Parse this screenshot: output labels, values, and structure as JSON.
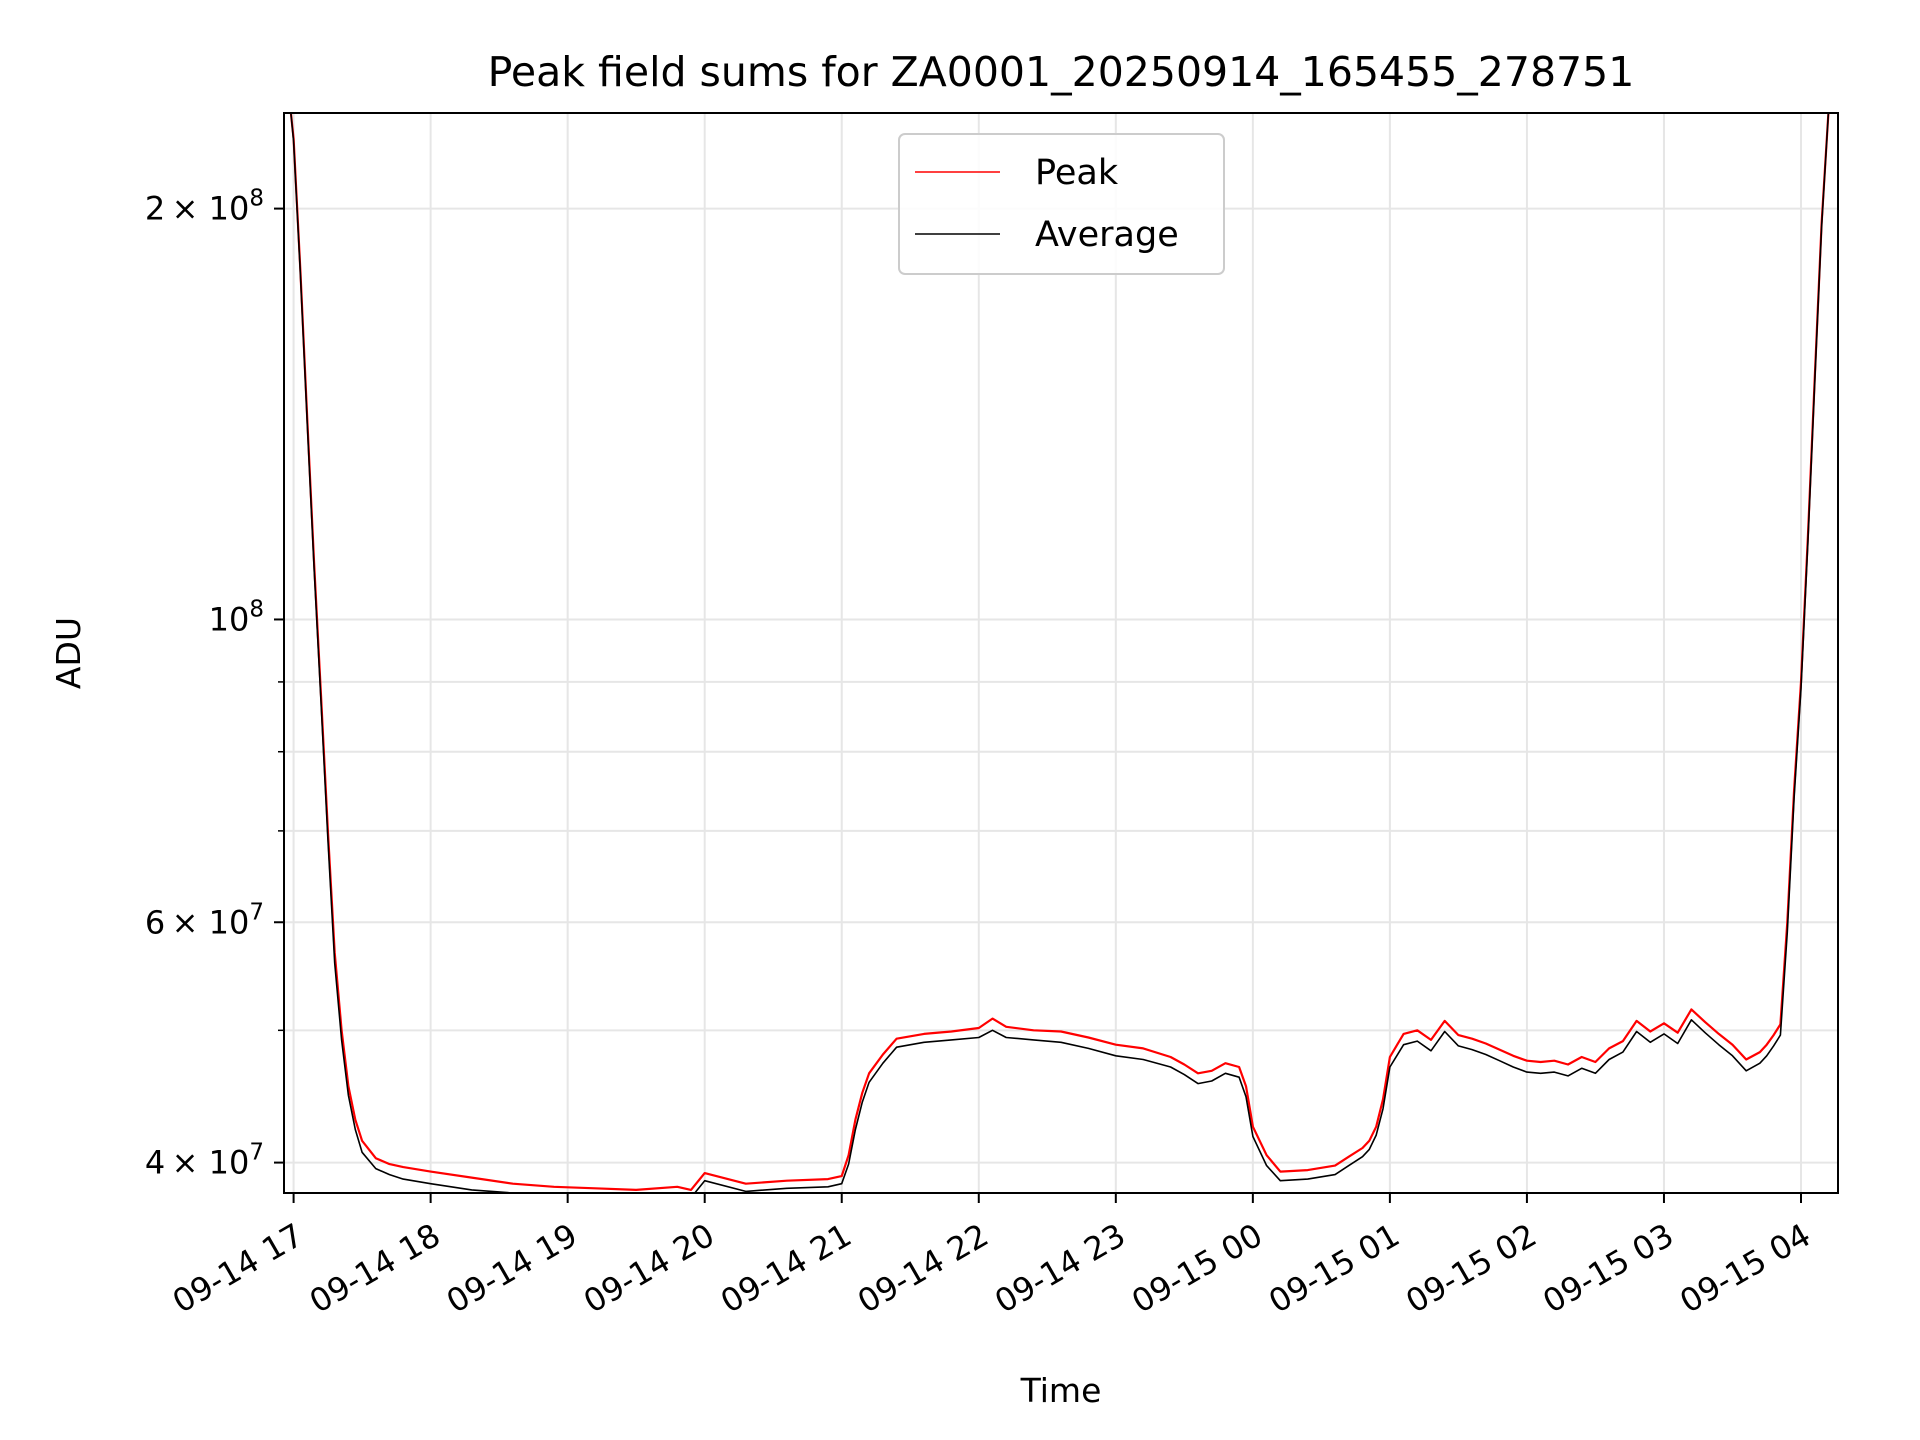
{
  "chart_data": {
    "type": "line",
    "title": "Peak field sums for ZA0001_20250914_165455_278751",
    "xlabel": "Time",
    "ylabel": "ADU",
    "yscale": "log",
    "grid": true,
    "legend_position": "top-center",
    "xlim": [
      16.93,
      28.27
    ],
    "ylim": [
      38000000,
      235000000
    ],
    "x_ticks": [
      {
        "value": 17,
        "label": "09-14 17"
      },
      {
        "value": 18,
        "label": "09-14 18"
      },
      {
        "value": 19,
        "label": "09-14 19"
      },
      {
        "value": 20,
        "label": "09-14 20"
      },
      {
        "value": 21,
        "label": "09-14 21"
      },
      {
        "value": 22,
        "label": "09-14 22"
      },
      {
        "value": 23,
        "label": "09-14 23"
      },
      {
        "value": 24,
        "label": "09-15 00"
      },
      {
        "value": 25,
        "label": "09-15 01"
      },
      {
        "value": 26,
        "label": "09-15 02"
      },
      {
        "value": 27,
        "label": "09-15 03"
      },
      {
        "value": 28,
        "label": "09-15 04"
      }
    ],
    "y_ticks": [
      {
        "value": 40000000,
        "base": "4",
        "mult": "× 10",
        "exp": "7"
      },
      {
        "value": 60000000,
        "base": "6",
        "mult": "× 10",
        "exp": "7"
      },
      {
        "value": 100000000,
        "base": "10",
        "mult": "",
        "exp": "8"
      },
      {
        "value": 200000000,
        "base": "2",
        "mult": "× 10",
        "exp": "8"
      }
    ],
    "y_minor_ticks": [
      50000000,
      70000000,
      80000000,
      90000000
    ],
    "series": [
      {
        "name": "Peak",
        "color": "#ff0000",
        "x": [
          16.98,
          17.0,
          17.05,
          17.1,
          17.15,
          17.2,
          17.25,
          17.3,
          17.35,
          17.4,
          17.45,
          17.5,
          17.6,
          17.7,
          17.8,
          18.0,
          18.3,
          18.6,
          18.9,
          19.2,
          19.5,
          19.8,
          19.9,
          20.0,
          20.3,
          20.6,
          20.9,
          21.0,
          21.05,
          21.1,
          21.15,
          21.2,
          21.3,
          21.4,
          21.6,
          21.8,
          22.0,
          22.1,
          22.2,
          22.4,
          22.6,
          22.8,
          23.0,
          23.2,
          23.4,
          23.5,
          23.6,
          23.7,
          23.8,
          23.9,
          23.95,
          24.0,
          24.1,
          24.2,
          24.4,
          24.6,
          24.7,
          24.8,
          24.85,
          24.9,
          24.95,
          25.0,
          25.1,
          25.2,
          25.3,
          25.4,
          25.5,
          25.6,
          25.7,
          25.8,
          25.9,
          26.0,
          26.1,
          26.2,
          26.3,
          26.4,
          26.5,
          26.6,
          26.7,
          26.8,
          26.9,
          27.0,
          27.1,
          27.2,
          27.3,
          27.4,
          27.5,
          27.6,
          27.7,
          27.75,
          27.8,
          27.85,
          27.9,
          27.95,
          28.0,
          28.05,
          28.1,
          28.15,
          28.2
        ],
        "values": [
          235000000,
          225000000,
          180000000,
          140000000,
          110000000,
          88000000,
          70000000,
          57000000,
          50000000,
          45500000,
          43000000,
          41500000,
          40300000,
          39900000,
          39700000,
          39400000,
          39000000,
          38600000,
          38400000,
          38300000,
          38200000,
          38400000,
          38200000,
          39300000,
          38600000,
          38800000,
          38900000,
          39100000,
          40500000,
          43000000,
          45000000,
          46500000,
          48000000,
          49300000,
          49700000,
          49900000,
          50200000,
          51000000,
          50300000,
          50000000,
          49900000,
          49400000,
          48800000,
          48500000,
          47800000,
          47200000,
          46500000,
          46700000,
          47300000,
          47000000,
          45500000,
          42500000,
          40500000,
          39400000,
          39500000,
          39800000,
          40400000,
          41000000,
          41500000,
          42500000,
          44500000,
          47800000,
          49700000,
          50000000,
          49200000,
          50800000,
          49600000,
          49300000,
          48900000,
          48400000,
          47900000,
          47500000,
          47400000,
          47500000,
          47200000,
          47800000,
          47400000,
          48500000,
          49100000,
          50800000,
          49900000,
          50600000,
          49800000,
          51800000,
          50700000,
          49700000,
          48800000,
          47600000,
          48200000,
          48800000,
          49600000,
          50500000,
          60000000,
          75000000,
          90000000,
          115000000,
          150000000,
          195000000,
          235000000
        ]
      },
      {
        "name": "Average",
        "color": "#000000",
        "x": [
          16.98,
          17.0,
          17.05,
          17.1,
          17.15,
          17.2,
          17.25,
          17.3,
          17.35,
          17.4,
          17.45,
          17.5,
          17.6,
          17.7,
          17.8,
          18.0,
          18.3,
          18.6,
          18.9,
          19.2,
          19.5,
          19.8,
          19.9,
          20.0,
          20.3,
          20.6,
          20.9,
          21.0,
          21.05,
          21.1,
          21.15,
          21.2,
          21.3,
          21.4,
          21.6,
          21.8,
          22.0,
          22.1,
          22.2,
          22.4,
          22.6,
          22.8,
          23.0,
          23.2,
          23.4,
          23.5,
          23.6,
          23.7,
          23.8,
          23.9,
          23.95,
          24.0,
          24.1,
          24.2,
          24.4,
          24.6,
          24.7,
          24.8,
          24.85,
          24.9,
          24.95,
          25.0,
          25.1,
          25.2,
          25.3,
          25.4,
          25.5,
          25.6,
          25.7,
          25.8,
          25.9,
          26.0,
          26.1,
          26.2,
          26.3,
          26.4,
          26.5,
          26.6,
          26.7,
          26.8,
          26.9,
          27.0,
          27.1,
          27.2,
          27.3,
          27.4,
          27.5,
          27.6,
          27.7,
          27.75,
          27.8,
          27.85,
          27.9,
          27.95,
          28.0,
          28.05,
          28.1,
          28.15,
          28.2
        ],
        "values": [
          235000000,
          224000000,
          179000000,
          139000000,
          109000000,
          87000000,
          69000000,
          56000000,
          49200000,
          44800000,
          42300000,
          40700000,
          39600000,
          39200000,
          38900000,
          38600000,
          38200000,
          38000000,
          37800000,
          37700000,
          37700000,
          37900000,
          37700000,
          38800000,
          38100000,
          38300000,
          38400000,
          38600000,
          39900000,
          42300000,
          44300000,
          45800000,
          47300000,
          48600000,
          49000000,
          49200000,
          49400000,
          50000000,
          49400000,
          49200000,
          49000000,
          48500000,
          47900000,
          47600000,
          47000000,
          46400000,
          45700000,
          45900000,
          46500000,
          46200000,
          44700000,
          41800000,
          39800000,
          38800000,
          38900000,
          39200000,
          39800000,
          40400000,
          40900000,
          41900000,
          43800000,
          47000000,
          48800000,
          49100000,
          48300000,
          49900000,
          48700000,
          48400000,
          48000000,
          47500000,
          47000000,
          46600000,
          46500000,
          46600000,
          46300000,
          46900000,
          46500000,
          47600000,
          48200000,
          49900000,
          49000000,
          49700000,
          48900000,
          50900000,
          49800000,
          48800000,
          47900000,
          46700000,
          47300000,
          47900000,
          48700000,
          49600000,
          59000000,
          74000000,
          89000000,
          114000000,
          149000000,
          194000000,
          235000000
        ]
      }
    ]
  }
}
